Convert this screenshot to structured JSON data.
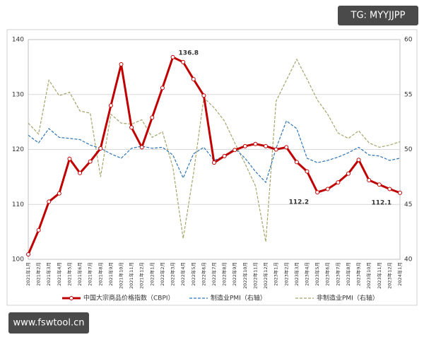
{
  "chart_data": {
    "type": "line",
    "watermarks": [
      "TG: MYYJJPP",
      "www.fswtool.cn"
    ],
    "categories": [
      "2021年1月",
      "2021年2月",
      "2021年3月",
      "2021年4月",
      "2021年5月",
      "2021年6月",
      "2021年7月",
      "2021年8月",
      "2021年9月",
      "2021年10月",
      "2021年11月",
      "2021年12月",
      "2022年1月",
      "2022年2月",
      "2022年3月",
      "2022年4月",
      "2022年5月",
      "2022年6月",
      "2022年7月",
      "2022年8月",
      "2022年9月",
      "2022年10月",
      "2022年11月",
      "2022年12月",
      "2023年1月",
      "2023年2月",
      "2023年3月",
      "2023年4月",
      "2023年5月",
      "2023年6月",
      "2023年7月",
      "2023年8月",
      "2023年9月",
      "2023年10月",
      "2023年11月",
      "2023年12月",
      "2024年1月"
    ],
    "series": [
      {
        "name": "中国大宗商品价格指数（CBPI）",
        "color": "#c00000",
        "axis": "y",
        "values": [
          100.9,
          105.3,
          110.5,
          112,
          118.3,
          115.7,
          117.8,
          120.2,
          128,
          135.5,
          124,
          120.4,
          125.8,
          131.2,
          136.8,
          135.9,
          132.8,
          129.8,
          117.6,
          118.8,
          119.9,
          120.6,
          121,
          120.6,
          120,
          120.4,
          117.7,
          116,
          112.2,
          112.8,
          114,
          115.6,
          118.1,
          114.4,
          113.6,
          112.8,
          112.1
        ],
        "value_labels": [
          null,
          null,
          null,
          null,
          null,
          null,
          null,
          null,
          null,
          null,
          null,
          null,
          null,
          null,
          "136.8",
          null,
          null,
          null,
          null,
          null,
          null,
          null,
          null,
          null,
          null,
          null,
          null,
          null,
          "112.2",
          null,
          null,
          null,
          null,
          null,
          null,
          null,
          "112.1"
        ]
      },
      {
        "name": "制造业PMI（右轴）",
        "color": "#2e75b6",
        "axis": "y2",
        "values": [
          51.3,
          50.6,
          51.9,
          51.1,
          51.0,
          50.9,
          50.4,
          50.1,
          49.6,
          49.2,
          50.1,
          50.3,
          50.1,
          50.2,
          49.5,
          47.4,
          49.6,
          50.2,
          49.0,
          49.4,
          50.1,
          49.2,
          48.0,
          47.0,
          50.1,
          52.6,
          51.9,
          49.2,
          48.8,
          49.0,
          49.3,
          49.7,
          50.2,
          49.5,
          49.4,
          49.0,
          49.2
        ]
      },
      {
        "name": "非制造业PMI（右轴）",
        "color": "#a5a56b",
        "axis": "y2",
        "values": [
          52.4,
          51.4,
          56.3,
          54.9,
          55.2,
          53.5,
          53.3,
          47.5,
          53.2,
          52.4,
          52.3,
          52.7,
          51.1,
          51.6,
          48.4,
          41.9,
          47.8,
          54.7,
          53.8,
          52.6,
          50.6,
          48.7,
          46.7,
          41.6,
          54.4,
          56.3,
          58.2,
          56.4,
          54.5,
          53.2,
          51.5,
          51.0,
          51.7,
          50.6,
          50.2,
          50.4,
          50.7
        ]
      }
    ],
    "ylim": [
      100,
      140
    ],
    "yticks": [
      100,
      110,
      120,
      130,
      140
    ],
    "y2lim": [
      40,
      60
    ],
    "y2ticks": [
      40,
      45,
      50,
      55,
      60
    ],
    "grid": true,
    "legend": "bottom"
  }
}
